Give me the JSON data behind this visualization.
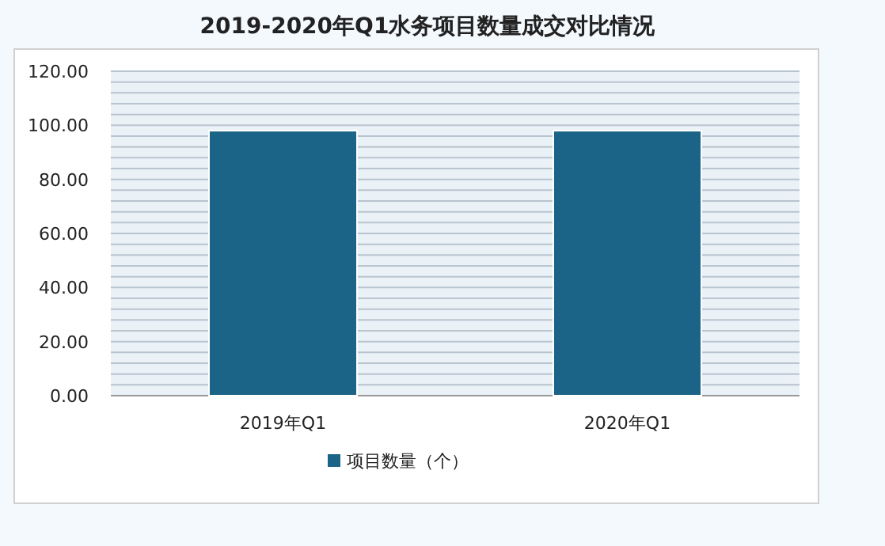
{
  "chart_data": {
    "type": "bar",
    "title": "2019-2020年Q1水务项目数量成交对比情况",
    "categories": [
      "2019年Q1",
      "2020年Q1"
    ],
    "series": [
      {
        "name": "项目数量（个）",
        "color": "#1b6487",
        "values": [
          98,
          98
        ]
      }
    ],
    "ylim": [
      0,
      120
    ],
    "yticks": [
      {
        "value": 0,
        "label": "0.00"
      },
      {
        "value": 4,
        "label": null
      },
      {
        "value": 8,
        "label": null
      },
      {
        "value": 12,
        "label": null
      },
      {
        "value": 16,
        "label": null
      },
      {
        "value": 20,
        "label": "20.00"
      },
      {
        "value": 24,
        "label": null
      },
      {
        "value": 28,
        "label": null
      },
      {
        "value": 32,
        "label": null
      },
      {
        "value": 36,
        "label": null
      },
      {
        "value": 40,
        "label": "40.00"
      },
      {
        "value": 44,
        "label": null
      },
      {
        "value": 48,
        "label": null
      },
      {
        "value": 52,
        "label": null
      },
      {
        "value": 56,
        "label": null
      },
      {
        "value": 60,
        "label": "60.00"
      },
      {
        "value": 64,
        "label": null
      },
      {
        "value": 68,
        "label": null
      },
      {
        "value": 72,
        "label": null
      },
      {
        "value": 76,
        "label": null
      },
      {
        "value": 80,
        "label": "80.00"
      },
      {
        "value": 84,
        "label": null
      },
      {
        "value": 88,
        "label": null
      },
      {
        "value": 92,
        "label": null
      },
      {
        "value": 96,
        "label": null
      },
      {
        "value": 100,
        "label": "100.00"
      },
      {
        "value": 104,
        "label": null
      },
      {
        "value": 108,
        "label": null
      },
      {
        "value": 112,
        "label": null
      },
      {
        "value": 116,
        "label": null
      },
      {
        "value": 120,
        "label": "120.00"
      }
    ],
    "grid": "y",
    "legend": "bottom"
  }
}
